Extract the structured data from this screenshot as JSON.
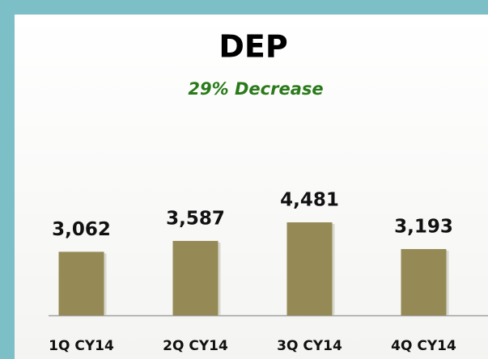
{
  "chart_data": {
    "type": "bar",
    "title": "DEP",
    "subtitle": "29% Decrease",
    "categories": [
      "1Q CY14",
      "2Q CY14",
      "3Q CY14",
      "4Q CY14"
    ],
    "values": [
      3062,
      3587,
      4481,
      3193
    ],
    "value_labels": [
      "3,062",
      "3,587",
      "4,481",
      "3,193"
    ],
    "color": "#958a55"
  }
}
